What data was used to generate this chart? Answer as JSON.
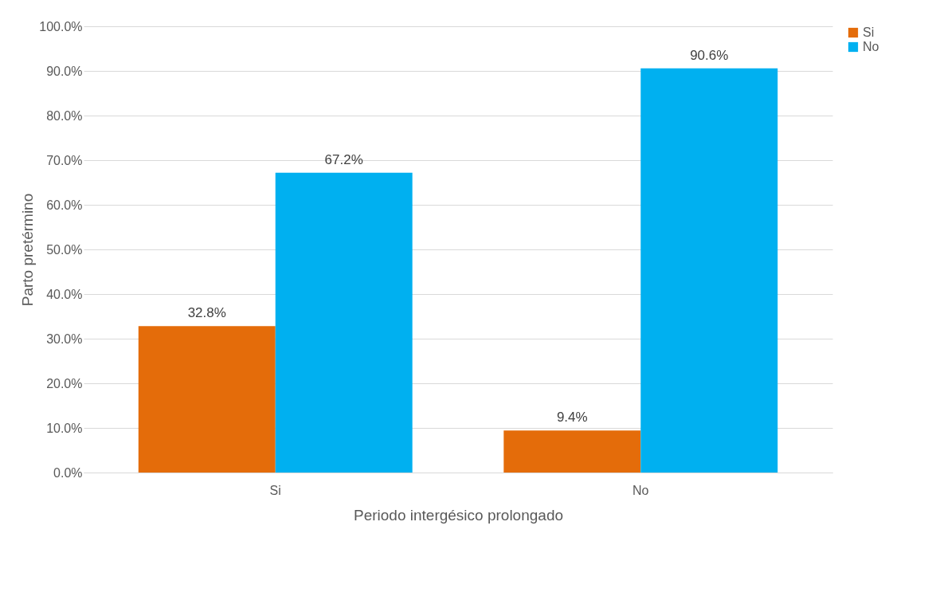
{
  "chart_data": {
    "type": "bar",
    "xlabel": "Periodo intergésico prolongado",
    "ylabel": "Parto pretérmino",
    "categories": [
      "Si",
      "No"
    ],
    "series": [
      {
        "name": "Si",
        "color": "#e46c0a",
        "values": [
          32.8,
          9.4
        ],
        "value_labels": [
          "32.8%",
          "9.4%"
        ]
      },
      {
        "name": "No",
        "color": "#00b0f0",
        "values": [
          67.2,
          90.6
        ],
        "value_labels": [
          "67.2%",
          "90.6%"
        ]
      }
    ],
    "ylim": [
      0,
      100
    ],
    "yticks": [
      {
        "value": 0,
        "label": "0.0%"
      },
      {
        "value": 10,
        "label": "10.0%"
      },
      {
        "value": 20,
        "label": "20.0%"
      },
      {
        "value": 30,
        "label": "30.0%"
      },
      {
        "value": 40,
        "label": "40.0%"
      },
      {
        "value": 50,
        "label": "50.0%"
      },
      {
        "value": 60,
        "label": "60.0%"
      },
      {
        "value": 70,
        "label": "70.0%"
      },
      {
        "value": 80,
        "label": "80.0%"
      },
      {
        "value": 90,
        "label": "90.0%"
      },
      {
        "value": 100,
        "label": "100.0%"
      }
    ],
    "grid": "y",
    "legend": "right"
  }
}
